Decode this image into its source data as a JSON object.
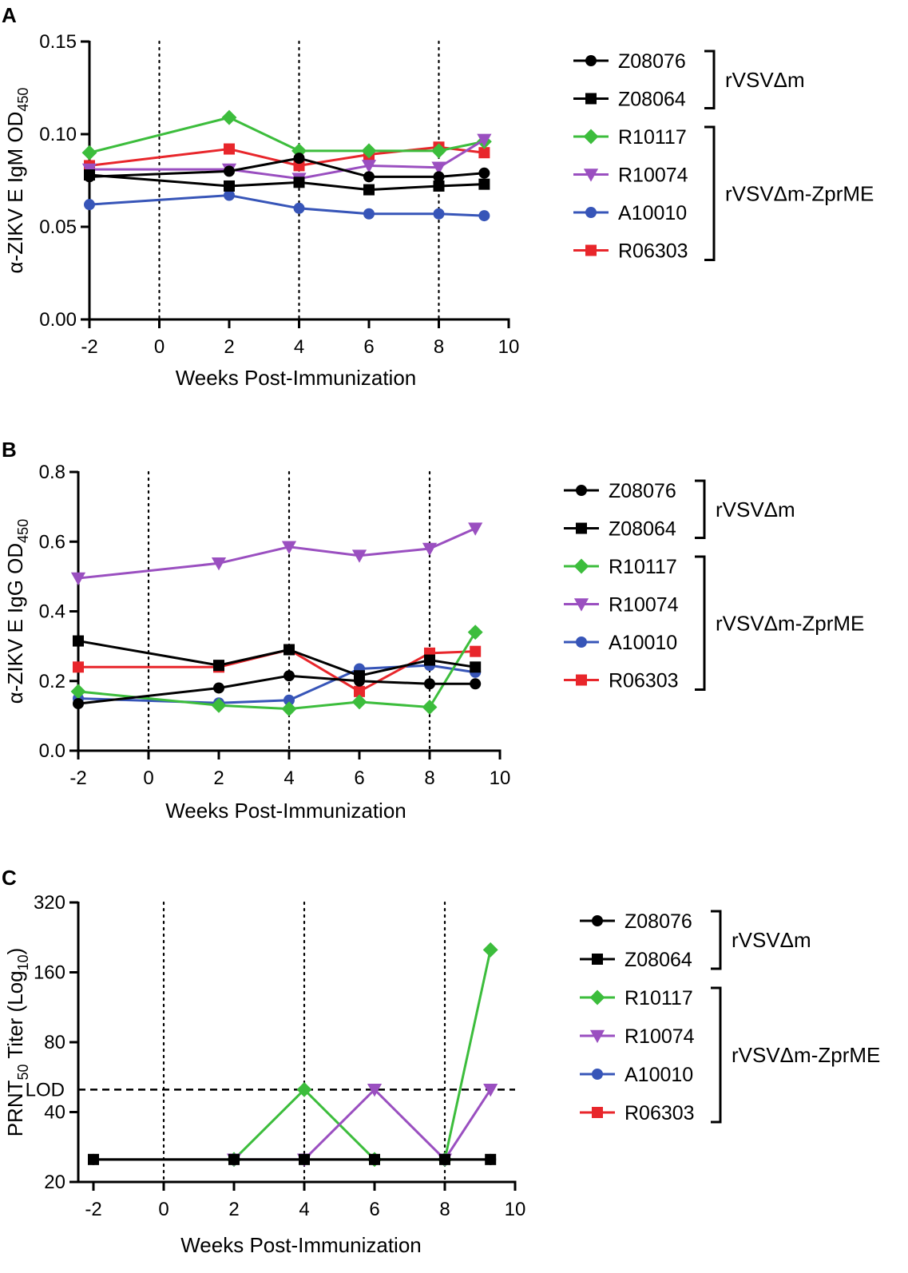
{
  "chart_data": [
    {
      "panel": "A",
      "type": "line",
      "xlabel": "Weeks Post-Immunization",
      "ylabel": "α-ZIKV E IgM OD",
      "ylabel_sub": "450",
      "xlim": [
        -2,
        10
      ],
      "ylim": [
        0,
        0.15
      ],
      "xticks": [
        -2,
        0,
        2,
        4,
        6,
        8,
        10
      ],
      "yticks": [
        0,
        0.05,
        0.1,
        0.15
      ],
      "ytick_labels": [
        "0.00",
        "0.05",
        "0.10",
        "0.15"
      ],
      "vlines": [
        0,
        4,
        8
      ],
      "series": [
        {
          "name": "Z08076",
          "color": "#000000",
          "marker": "circle",
          "x": [
            -2,
            2,
            4,
            6,
            8,
            9.3
          ],
          "y": [
            0.077,
            0.08,
            0.087,
            0.077,
            0.077,
            0.079
          ]
        },
        {
          "name": "Z08064",
          "color": "#000000",
          "marker": "square",
          "x": [
            -2,
            2,
            4,
            6,
            8,
            9.3
          ],
          "y": [
            0.078,
            0.072,
            0.074,
            0.07,
            0.072,
            0.073
          ]
        },
        {
          "name": "R10117",
          "color": "#3cbd3c",
          "marker": "diamond",
          "x": [
            -2,
            2,
            4,
            6,
            8,
            9.3
          ],
          "y": [
            0.09,
            0.109,
            0.091,
            0.091,
            0.091,
            0.096
          ]
        },
        {
          "name": "R10074",
          "color": "#9a4fc0",
          "marker": "triangle-down",
          "x": [
            -2,
            2,
            4,
            6,
            8,
            9.3
          ],
          "y": [
            0.081,
            0.081,
            0.076,
            0.083,
            0.082,
            0.097
          ]
        },
        {
          "name": "A10010",
          "color": "#3755b8",
          "marker": "circle",
          "x": [
            -2,
            2,
            4,
            6,
            8,
            9.3
          ],
          "y": [
            0.062,
            0.067,
            0.06,
            0.057,
            0.057,
            0.056
          ]
        },
        {
          "name": "R06303",
          "color": "#e8262b",
          "marker": "square",
          "x": [
            -2,
            2,
            4,
            6,
            8,
            9.3
          ],
          "y": [
            0.083,
            0.092,
            0.083,
            0.089,
            0.093,
            0.09
          ]
        }
      ],
      "groups": [
        {
          "label": "rVSVΔm",
          "members": [
            "Z08076",
            "Z08064"
          ]
        },
        {
          "label": "rVSVΔm-ZprME",
          "members": [
            "R10117",
            "R10074",
            "A10010",
            "R06303"
          ]
        }
      ]
    },
    {
      "panel": "B",
      "type": "line",
      "xlabel": "Weeks Post-Immunization",
      "ylabel": "α-ZIKV E IgG OD",
      "ylabel_sub": "450",
      "xlim": [
        -2,
        10
      ],
      "ylim": [
        0,
        0.8
      ],
      "xticks": [
        -2,
        0,
        2,
        4,
        6,
        8,
        10
      ],
      "yticks": [
        0,
        0.2,
        0.4,
        0.6,
        0.8
      ],
      "ytick_labels": [
        "0.0",
        "0.2",
        "0.4",
        "0.6",
        "0.8"
      ],
      "vlines": [
        0,
        4,
        8
      ],
      "series": [
        {
          "name": "Z08076",
          "color": "#000000",
          "marker": "circle",
          "x": [
            -2,
            2,
            4,
            6,
            8,
            9.3
          ],
          "y": [
            0.135,
            0.18,
            0.215,
            0.2,
            0.192,
            0.192
          ]
        },
        {
          "name": "Z08064",
          "color": "#000000",
          "marker": "square",
          "x": [
            -2,
            2,
            4,
            6,
            8,
            9.3
          ],
          "y": [
            0.315,
            0.245,
            0.29,
            0.215,
            0.26,
            0.24
          ]
        },
        {
          "name": "R10117",
          "color": "#3cbd3c",
          "marker": "diamond",
          "x": [
            -2,
            2,
            4,
            6,
            8,
            9.3
          ],
          "y": [
            0.17,
            0.13,
            0.12,
            0.14,
            0.125,
            0.34
          ]
        },
        {
          "name": "R10074",
          "color": "#9a4fc0",
          "marker": "triangle-down",
          "x": [
            -2,
            2,
            4,
            6,
            8,
            9.3
          ],
          "y": [
            0.495,
            0.538,
            0.585,
            0.56,
            0.58,
            0.638
          ]
        },
        {
          "name": "A10010",
          "color": "#3755b8",
          "marker": "circle",
          "x": [
            -2,
            2,
            4,
            6,
            8,
            9.3
          ],
          "y": [
            0.15,
            0.137,
            0.145,
            0.235,
            0.245,
            0.225
          ]
        },
        {
          "name": "R06303",
          "color": "#e8262b",
          "marker": "square",
          "x": [
            -2,
            2,
            4,
            6,
            8,
            9.3
          ],
          "y": [
            0.24,
            0.24,
            0.29,
            0.17,
            0.28,
            0.285
          ]
        }
      ],
      "groups": [
        {
          "label": "rVSVΔm",
          "members": [
            "Z08076",
            "Z08064"
          ]
        },
        {
          "label": "rVSVΔm-ZprME",
          "members": [
            "R10117",
            "R10074",
            "A10010",
            "R06303"
          ]
        }
      ]
    },
    {
      "panel": "C",
      "type": "line",
      "xlabel": "Weeks Post-Immunization",
      "ylabel_pre": "PRNT",
      "ylabel_sub": "50",
      "ylabel_mid": " Titer (Log",
      "ylabel_sub2": "10",
      "ylabel_post": ")",
      "yscale": "log",
      "xlim": [
        -2,
        10
      ],
      "ylim": [
        20,
        320
      ],
      "xticks": [
        -2,
        0,
        2,
        4,
        6,
        8,
        10
      ],
      "yticks": [
        20,
        40,
        80,
        160,
        320
      ],
      "ytick_labels": [
        "20",
        "40",
        "80",
        "160",
        "320"
      ],
      "lod_label": "LOD",
      "lod_value": 50,
      "vlines": [
        0,
        4,
        8
      ],
      "series": [
        {
          "name": "Z08076",
          "color": "#000000",
          "marker": "circle",
          "x": [
            -2,
            2,
            4,
            6,
            8,
            9.3
          ],
          "y": [
            25,
            25,
            25,
            25,
            25,
            25
          ]
        },
        {
          "name": "Z08064",
          "color": "#000000",
          "marker": "square",
          "x": [
            -2,
            2,
            4,
            6,
            8,
            9.3
          ],
          "y": [
            25,
            25,
            25,
            25,
            25,
            25
          ]
        },
        {
          "name": "R10117",
          "color": "#3cbd3c",
          "marker": "diamond",
          "x": [
            2,
            4,
            6,
            8,
            9.3
          ],
          "y": [
            25,
            50,
            25,
            25,
            200
          ]
        },
        {
          "name": "R10074",
          "color": "#9a4fc0",
          "marker": "triangle-down",
          "x": [
            2,
            4,
            6,
            8,
            9.3
          ],
          "y": [
            25,
            25,
            50,
            25,
            50
          ]
        },
        {
          "name": "A10010",
          "color": "#3755b8",
          "marker": "circle",
          "x": [],
          "y": []
        },
        {
          "name": "R06303",
          "color": "#e8262b",
          "marker": "square",
          "x": [],
          "y": []
        }
      ],
      "groups": [
        {
          "label": "rVSVΔm",
          "members": [
            "Z08076",
            "Z08064"
          ]
        },
        {
          "label": "rVSVΔm-ZprME",
          "members": [
            "R10117",
            "R10074",
            "A10010",
            "R06303"
          ]
        }
      ]
    }
  ]
}
